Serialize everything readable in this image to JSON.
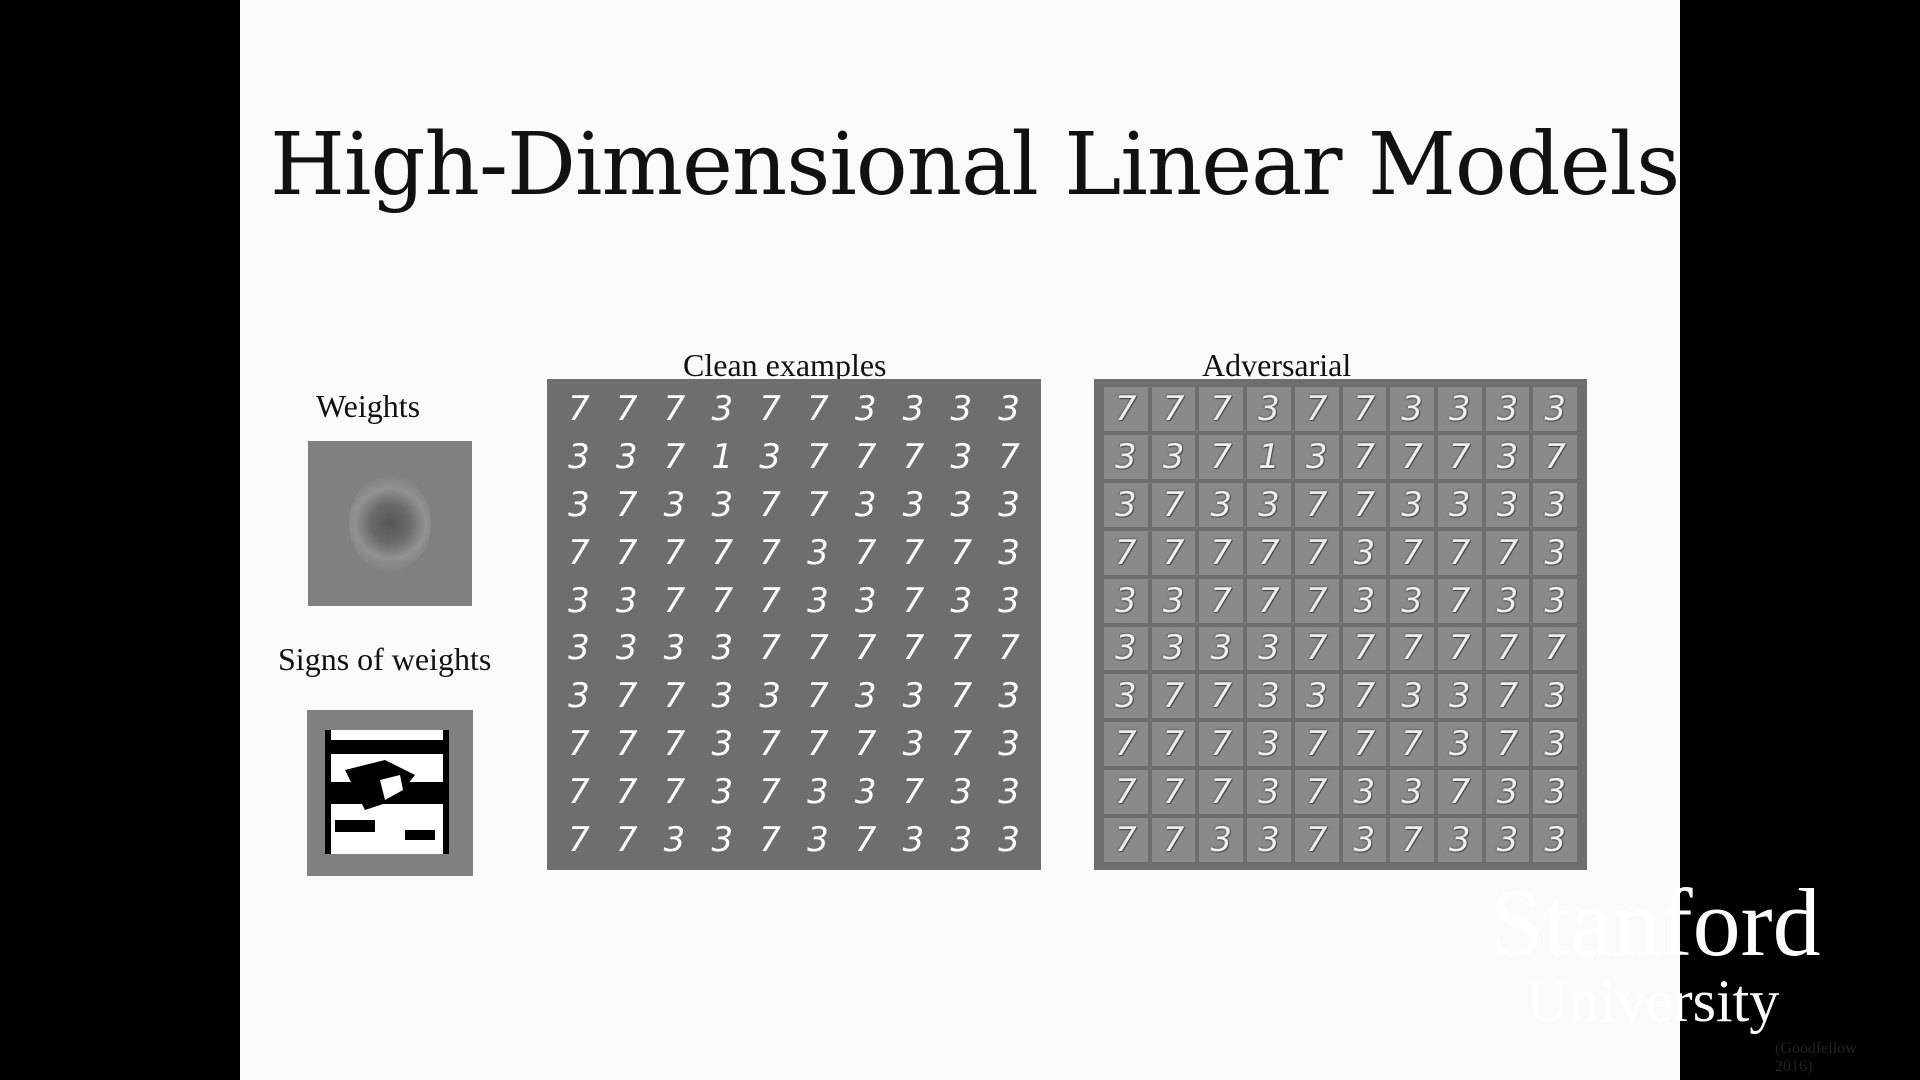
{
  "slide": {
    "title": "High-Dimensional Linear Models",
    "weights_label": "Weights",
    "signs_label": "Signs of weights",
    "clean_label": "Clean examples",
    "adversarial_label": "Adversarial",
    "citation": "(Goodfellow 2016)"
  },
  "logo": {
    "line1": "Stanford",
    "line2": "University"
  },
  "grids": {
    "rows": [
      [
        "7",
        "7",
        "7",
        "3",
        "7",
        "7",
        "3",
        "3",
        "3",
        "3"
      ],
      [
        "3",
        "3",
        "7",
        "1",
        "3",
        "7",
        "7",
        "7",
        "3",
        "7"
      ],
      [
        "3",
        "7",
        "3",
        "3",
        "7",
        "7",
        "3",
        "3",
        "3",
        "3"
      ],
      [
        "7",
        "7",
        "7",
        "7",
        "7",
        "3",
        "7",
        "7",
        "7",
        "3"
      ],
      [
        "3",
        "3",
        "7",
        "7",
        "7",
        "3",
        "3",
        "7",
        "3",
        "3"
      ],
      [
        "3",
        "3",
        "3",
        "3",
        "7",
        "7",
        "7",
        "7",
        "7",
        "7"
      ],
      [
        "3",
        "7",
        "7",
        "3",
        "3",
        "7",
        "3",
        "3",
        "7",
        "3"
      ],
      [
        "7",
        "7",
        "7",
        "3",
        "7",
        "7",
        "7",
        "3",
        "7",
        "3"
      ],
      [
        "7",
        "7",
        "7",
        "3",
        "7",
        "3",
        "3",
        "7",
        "3",
        "3"
      ],
      [
        "7",
        "7",
        "3",
        "3",
        "7",
        "3",
        "7",
        "3",
        "3",
        "3"
      ]
    ]
  }
}
